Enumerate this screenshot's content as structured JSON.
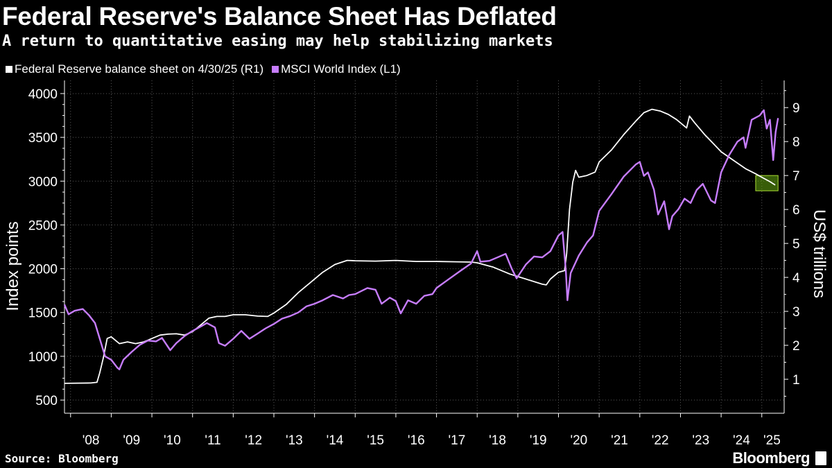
{
  "header": {
    "title": "Federal Reserve's Balance Sheet Has Deflated",
    "subtitle": "A return to quantitative easing may help stabilizing markets"
  },
  "legend": [
    {
      "label": "Federal Reserve balance sheet on 4/30/25 (R1)",
      "color": "#ffffff"
    },
    {
      "label": "MSCI World Index  (L1)",
      "color": "#c77dff"
    }
  ],
  "footer": {
    "source": "Source: Bloomberg",
    "brand": "Bloomberg"
  },
  "chart_data": {
    "type": "line",
    "title": "Federal Reserve's Balance Sheet Has Deflated",
    "subtitle": "A return to quantitative easing may help stabilizing markets",
    "xlabel": "",
    "x_ticks": [
      "'08",
      "'09",
      "'10",
      "'11",
      "'12",
      "'13",
      "'14",
      "'15",
      "'16",
      "'17",
      "'18",
      "'19",
      "'20",
      "'21",
      "'22",
      "'23",
      "'24",
      "'25"
    ],
    "xlim": [
      2007.85,
      2025.55
    ],
    "left_axis": {
      "label": "Index points",
      "lim": [
        350,
        4150
      ],
      "ticks": [
        500,
        1000,
        1500,
        2000,
        2500,
        3000,
        3500,
        4000
      ]
    },
    "right_axis": {
      "label": "US$ trillions",
      "lim": [
        0.0,
        9.8
      ],
      "ticks": [
        1,
        2,
        3,
        4,
        5,
        6,
        7,
        8,
        9
      ]
    },
    "grid": true,
    "highlight": {
      "x_range": [
        2024.85,
        2025.4
      ],
      "y_range": [
        6.55,
        7.0
      ],
      "axis": "right",
      "color": "#66aa11"
    },
    "series": [
      {
        "name": "Federal Reserve balance sheet on 4/30/25 (R1)",
        "axis": "right",
        "color": "#ffffff",
        "points": [
          [
            2007.85,
            0.88
          ],
          [
            2008.5,
            0.89
          ],
          [
            2008.65,
            0.91
          ],
          [
            2008.72,
            1.2
          ],
          [
            2008.8,
            1.6
          ],
          [
            2008.9,
            2.2
          ],
          [
            2009.0,
            2.25
          ],
          [
            2009.2,
            2.05
          ],
          [
            2009.4,
            2.1
          ],
          [
            2009.6,
            2.05
          ],
          [
            2009.8,
            2.1
          ],
          [
            2010.0,
            2.2
          ],
          [
            2010.2,
            2.3
          ],
          [
            2010.4,
            2.33
          ],
          [
            2010.6,
            2.34
          ],
          [
            2010.8,
            2.3
          ],
          [
            2011.0,
            2.4
          ],
          [
            2011.2,
            2.6
          ],
          [
            2011.4,
            2.8
          ],
          [
            2011.6,
            2.85
          ],
          [
            2011.8,
            2.85
          ],
          [
            2012.0,
            2.9
          ],
          [
            2012.3,
            2.9
          ],
          [
            2012.6,
            2.86
          ],
          [
            2012.85,
            2.85
          ],
          [
            2013.0,
            2.95
          ],
          [
            2013.3,
            3.2
          ],
          [
            2013.6,
            3.55
          ],
          [
            2013.9,
            3.85
          ],
          [
            2014.2,
            4.15
          ],
          [
            2014.5,
            4.38
          ],
          [
            2014.8,
            4.5
          ],
          [
            2015.0,
            4.49
          ],
          [
            2015.5,
            4.48
          ],
          [
            2016.0,
            4.5
          ],
          [
            2016.5,
            4.47
          ],
          [
            2017.0,
            4.47
          ],
          [
            2017.5,
            4.46
          ],
          [
            2017.85,
            4.45
          ],
          [
            2018.0,
            4.43
          ],
          [
            2018.4,
            4.3
          ],
          [
            2018.8,
            4.1
          ],
          [
            2019.2,
            3.95
          ],
          [
            2019.6,
            3.8
          ],
          [
            2019.7,
            3.78
          ],
          [
            2019.8,
            3.95
          ],
          [
            2020.0,
            4.15
          ],
          [
            2020.15,
            4.2
          ],
          [
            2020.2,
            4.7
          ],
          [
            2020.27,
            6.0
          ],
          [
            2020.35,
            6.8
          ],
          [
            2020.42,
            7.15
          ],
          [
            2020.5,
            6.95
          ],
          [
            2020.7,
            7.0
          ],
          [
            2020.9,
            7.1
          ],
          [
            2021.0,
            7.4
          ],
          [
            2021.3,
            7.75
          ],
          [
            2021.6,
            8.2
          ],
          [
            2021.9,
            8.6
          ],
          [
            2022.1,
            8.85
          ],
          [
            2022.3,
            8.95
          ],
          [
            2022.5,
            8.9
          ],
          [
            2022.7,
            8.8
          ],
          [
            2022.9,
            8.65
          ],
          [
            2023.0,
            8.55
          ],
          [
            2023.15,
            8.4
          ],
          [
            2023.22,
            8.75
          ],
          [
            2023.35,
            8.55
          ],
          [
            2023.6,
            8.2
          ],
          [
            2023.8,
            7.95
          ],
          [
            2024.0,
            7.7
          ],
          [
            2024.3,
            7.45
          ],
          [
            2024.6,
            7.2
          ],
          [
            2024.85,
            7.05
          ],
          [
            2025.0,
            6.95
          ],
          [
            2025.2,
            6.82
          ],
          [
            2025.33,
            6.72
          ]
        ]
      },
      {
        "name": "MSCI World Index  (L1)",
        "axis": "left",
        "color": "#c77dff",
        "points": [
          [
            2007.85,
            1590
          ],
          [
            2007.95,
            1480
          ],
          [
            2008.1,
            1520
          ],
          [
            2008.3,
            1540
          ],
          [
            2008.45,
            1470
          ],
          [
            2008.6,
            1380
          ],
          [
            2008.75,
            1150
          ],
          [
            2008.85,
            1000
          ],
          [
            2009.0,
            960
          ],
          [
            2009.15,
            870
          ],
          [
            2009.2,
            850
          ],
          [
            2009.3,
            960
          ],
          [
            2009.5,
            1050
          ],
          [
            2009.7,
            1130
          ],
          [
            2009.9,
            1180
          ],
          [
            2010.1,
            1170
          ],
          [
            2010.25,
            1210
          ],
          [
            2010.45,
            1070
          ],
          [
            2010.6,
            1150
          ],
          [
            2010.8,
            1230
          ],
          [
            2011.0,
            1290
          ],
          [
            2011.2,
            1340
          ],
          [
            2011.35,
            1380
          ],
          [
            2011.55,
            1330
          ],
          [
            2011.65,
            1150
          ],
          [
            2011.8,
            1120
          ],
          [
            2012.0,
            1200
          ],
          [
            2012.2,
            1290
          ],
          [
            2012.4,
            1200
          ],
          [
            2012.6,
            1260
          ],
          [
            2012.8,
            1320
          ],
          [
            2013.0,
            1370
          ],
          [
            2013.2,
            1430
          ],
          [
            2013.4,
            1460
          ],
          [
            2013.6,
            1500
          ],
          [
            2013.8,
            1570
          ],
          [
            2014.0,
            1600
          ],
          [
            2014.2,
            1640
          ],
          [
            2014.45,
            1700
          ],
          [
            2014.7,
            1660
          ],
          [
            2014.85,
            1700
          ],
          [
            2015.0,
            1710
          ],
          [
            2015.3,
            1780
          ],
          [
            2015.5,
            1760
          ],
          [
            2015.65,
            1600
          ],
          [
            2015.85,
            1670
          ],
          [
            2016.0,
            1630
          ],
          [
            2016.12,
            1490
          ],
          [
            2016.3,
            1640
          ],
          [
            2016.5,
            1600
          ],
          [
            2016.7,
            1690
          ],
          [
            2016.9,
            1710
          ],
          [
            2017.0,
            1780
          ],
          [
            2017.3,
            1880
          ],
          [
            2017.6,
            1980
          ],
          [
            2017.85,
            2060
          ],
          [
            2018.0,
            2200
          ],
          [
            2018.08,
            2080
          ],
          [
            2018.3,
            2090
          ],
          [
            2018.5,
            2130
          ],
          [
            2018.7,
            2170
          ],
          [
            2018.85,
            2000
          ],
          [
            2018.97,
            1890
          ],
          [
            2019.2,
            2050
          ],
          [
            2019.4,
            2140
          ],
          [
            2019.6,
            2130
          ],
          [
            2019.8,
            2200
          ],
          [
            2020.0,
            2380
          ],
          [
            2020.1,
            2420
          ],
          [
            2020.18,
            1980
          ],
          [
            2020.22,
            1640
          ],
          [
            2020.3,
            1950
          ],
          [
            2020.5,
            2150
          ],
          [
            2020.7,
            2300
          ],
          [
            2020.85,
            2380
          ],
          [
            2021.0,
            2660
          ],
          [
            2021.3,
            2850
          ],
          [
            2021.6,
            3050
          ],
          [
            2021.9,
            3190
          ],
          [
            2022.0,
            3220
          ],
          [
            2022.1,
            3060
          ],
          [
            2022.2,
            3100
          ],
          [
            2022.35,
            2900
          ],
          [
            2022.45,
            2620
          ],
          [
            2022.6,
            2770
          ],
          [
            2022.72,
            2450
          ],
          [
            2022.8,
            2600
          ],
          [
            2022.95,
            2680
          ],
          [
            2023.1,
            2800
          ],
          [
            2023.25,
            2750
          ],
          [
            2023.4,
            2900
          ],
          [
            2023.55,
            2970
          ],
          [
            2023.75,
            2780
          ],
          [
            2023.85,
            2750
          ],
          [
            2024.0,
            3100
          ],
          [
            2024.2,
            3300
          ],
          [
            2024.4,
            3450
          ],
          [
            2024.55,
            3500
          ],
          [
            2024.6,
            3380
          ],
          [
            2024.75,
            3700
          ],
          [
            2024.95,
            3750
          ],
          [
            2025.05,
            3810
          ],
          [
            2025.12,
            3600
          ],
          [
            2025.2,
            3700
          ],
          [
            2025.28,
            3240
          ],
          [
            2025.34,
            3560
          ],
          [
            2025.4,
            3720
          ]
        ]
      }
    ]
  }
}
